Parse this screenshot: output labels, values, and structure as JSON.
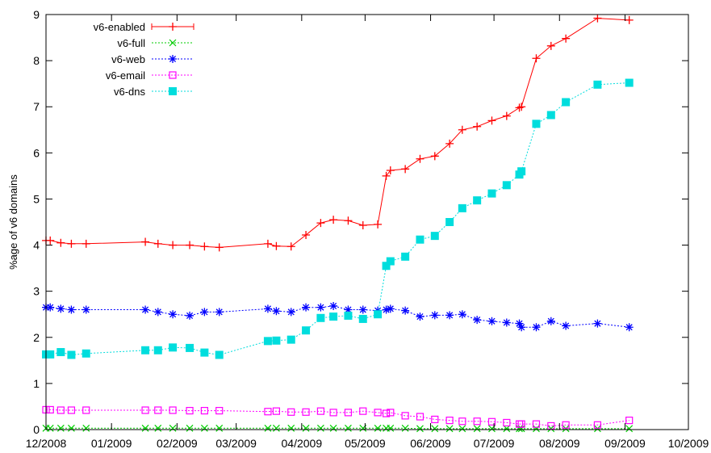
{
  "chart_data": {
    "type": "line",
    "title": "",
    "xlabel": "",
    "ylabel": "%age of v6 domains",
    "xlim": [
      "2008-12-01",
      "2009-10-01"
    ],
    "ylim": [
      0,
      9
    ],
    "xticks": [
      {
        "date": "2008-12-01",
        "label": "12/2008"
      },
      {
        "date": "2009-01-01",
        "label": "01/2009"
      },
      {
        "date": "2009-02-01",
        "label": "02/2009"
      },
      {
        "date": "2009-03-01",
        "label": "03/2009"
      },
      {
        "date": "2009-04-01",
        "label": "04/2009"
      },
      {
        "date": "2009-05-01",
        "label": "05/2009"
      },
      {
        "date": "2009-06-01",
        "label": "06/2009"
      },
      {
        "date": "2009-07-01",
        "label": "07/2009"
      },
      {
        "date": "2009-08-01",
        "label": "08/2009"
      },
      {
        "date": "2009-09-01",
        "label": "09/2009"
      },
      {
        "date": "2009-10-01",
        "label": "10/2009"
      }
    ],
    "yticks": [
      0,
      1,
      2,
      3,
      4,
      5,
      6,
      7,
      8,
      9
    ],
    "grid": false,
    "legend_position": "top-left",
    "series": [
      {
        "name": "v6-enabled",
        "color": "#ff0000",
        "marker": "plus",
        "points": [
          [
            "2008-12-01",
            4.1
          ],
          [
            "2008-12-03",
            4.1
          ],
          [
            "2008-12-08",
            4.05
          ],
          [
            "2008-12-13",
            4.03
          ],
          [
            "2008-12-20",
            4.03
          ],
          [
            "2009-01-17",
            4.07
          ],
          [
            "2009-01-23",
            4.03
          ],
          [
            "2009-01-30",
            4.0
          ],
          [
            "2009-02-07",
            4.0
          ],
          [
            "2009-02-14",
            3.97
          ],
          [
            "2009-02-21",
            3.95
          ],
          [
            "2009-03-16",
            4.03
          ],
          [
            "2009-03-20",
            3.98
          ],
          [
            "2009-03-27",
            3.97
          ],
          [
            "2009-04-03",
            4.22
          ],
          [
            "2009-04-10",
            4.48
          ],
          [
            "2009-04-16",
            4.55
          ],
          [
            "2009-04-23",
            4.53
          ],
          [
            "2009-04-30",
            4.43
          ],
          [
            "2009-05-07",
            4.45
          ],
          [
            "2009-05-11",
            5.5
          ],
          [
            "2009-05-13",
            5.62
          ],
          [
            "2009-05-20",
            5.65
          ],
          [
            "2009-05-27",
            5.87
          ],
          [
            "2009-06-03",
            5.93
          ],
          [
            "2009-06-10",
            6.2
          ],
          [
            "2009-06-16",
            6.5
          ],
          [
            "2009-06-23",
            6.57
          ],
          [
            "2009-06-30",
            6.7
          ],
          [
            "2009-07-07",
            6.8
          ],
          [
            "2009-07-13",
            6.98
          ],
          [
            "2009-07-14",
            7.0
          ],
          [
            "2009-07-21",
            8.05
          ],
          [
            "2009-07-28",
            8.32
          ],
          [
            "2009-08-04",
            8.48
          ],
          [
            "2009-08-19",
            8.92
          ],
          [
            "2009-09-03",
            8.88
          ]
        ]
      },
      {
        "name": "v6-full",
        "color": "#00cc00",
        "marker": "x",
        "points": [
          [
            "2008-12-01",
            0.03
          ],
          [
            "2008-12-03",
            0.03
          ],
          [
            "2008-12-08",
            0.03
          ],
          [
            "2008-12-13",
            0.03
          ],
          [
            "2008-12-20",
            0.03
          ],
          [
            "2009-01-17",
            0.03
          ],
          [
            "2009-01-23",
            0.03
          ],
          [
            "2009-01-30",
            0.03
          ],
          [
            "2009-02-07",
            0.03
          ],
          [
            "2009-02-14",
            0.03
          ],
          [
            "2009-02-21",
            0.03
          ],
          [
            "2009-03-16",
            0.03
          ],
          [
            "2009-03-20",
            0.03
          ],
          [
            "2009-03-27",
            0.03
          ],
          [
            "2009-04-03",
            0.03
          ],
          [
            "2009-04-10",
            0.03
          ],
          [
            "2009-04-16",
            0.03
          ],
          [
            "2009-04-23",
            0.03
          ],
          [
            "2009-04-30",
            0.03
          ],
          [
            "2009-05-07",
            0.03
          ],
          [
            "2009-05-11",
            0.03
          ],
          [
            "2009-05-13",
            0.03
          ],
          [
            "2009-05-20",
            0.03
          ],
          [
            "2009-05-27",
            0.02
          ],
          [
            "2009-06-03",
            0.02
          ],
          [
            "2009-06-10",
            0.02
          ],
          [
            "2009-06-16",
            0.02
          ],
          [
            "2009-06-23",
            0.02
          ],
          [
            "2009-06-30",
            0.02
          ],
          [
            "2009-07-07",
            0.02
          ],
          [
            "2009-07-13",
            0.02
          ],
          [
            "2009-07-14",
            0.02
          ],
          [
            "2009-07-21",
            0.02
          ],
          [
            "2009-07-28",
            0.02
          ],
          [
            "2009-08-04",
            0.02
          ],
          [
            "2009-08-19",
            0.02
          ],
          [
            "2009-09-03",
            0.02
          ]
        ]
      },
      {
        "name": "v6-web",
        "color": "#0000ff",
        "marker": "star",
        "points": [
          [
            "2008-12-01",
            2.65
          ],
          [
            "2008-12-03",
            2.65
          ],
          [
            "2008-12-08",
            2.62
          ],
          [
            "2008-12-13",
            2.6
          ],
          [
            "2008-12-20",
            2.6
          ],
          [
            "2009-01-17",
            2.6
          ],
          [
            "2009-01-23",
            2.55
          ],
          [
            "2009-01-30",
            2.5
          ],
          [
            "2009-02-07",
            2.47
          ],
          [
            "2009-02-14",
            2.55
          ],
          [
            "2009-02-21",
            2.55
          ],
          [
            "2009-03-16",
            2.62
          ],
          [
            "2009-03-20",
            2.57
          ],
          [
            "2009-03-27",
            2.55
          ],
          [
            "2009-04-03",
            2.65
          ],
          [
            "2009-04-10",
            2.65
          ],
          [
            "2009-04-16",
            2.68
          ],
          [
            "2009-04-23",
            2.6
          ],
          [
            "2009-04-30",
            2.6
          ],
          [
            "2009-05-07",
            2.58
          ],
          [
            "2009-05-11",
            2.6
          ],
          [
            "2009-05-13",
            2.62
          ],
          [
            "2009-05-20",
            2.58
          ],
          [
            "2009-05-27",
            2.45
          ],
          [
            "2009-06-03",
            2.48
          ],
          [
            "2009-06-10",
            2.48
          ],
          [
            "2009-06-16",
            2.5
          ],
          [
            "2009-06-23",
            2.38
          ],
          [
            "2009-06-30",
            2.35
          ],
          [
            "2009-07-07",
            2.32
          ],
          [
            "2009-07-13",
            2.3
          ],
          [
            "2009-07-14",
            2.22
          ],
          [
            "2009-07-21",
            2.22
          ],
          [
            "2009-07-28",
            2.35
          ],
          [
            "2009-08-04",
            2.25
          ],
          [
            "2009-08-19",
            2.3
          ],
          [
            "2009-09-03",
            2.22
          ]
        ]
      },
      {
        "name": "v6-email",
        "color": "#ff00ff",
        "marker": "square-open",
        "points": [
          [
            "2008-12-01",
            0.43
          ],
          [
            "2008-12-03",
            0.43
          ],
          [
            "2008-12-08",
            0.42
          ],
          [
            "2008-12-13",
            0.42
          ],
          [
            "2008-12-20",
            0.42
          ],
          [
            "2009-01-17",
            0.42
          ],
          [
            "2009-01-23",
            0.42
          ],
          [
            "2009-01-30",
            0.42
          ],
          [
            "2009-02-07",
            0.41
          ],
          [
            "2009-02-14",
            0.41
          ],
          [
            "2009-02-21",
            0.41
          ],
          [
            "2009-03-16",
            0.39
          ],
          [
            "2009-03-20",
            0.4
          ],
          [
            "2009-03-27",
            0.38
          ],
          [
            "2009-04-03",
            0.38
          ],
          [
            "2009-04-10",
            0.4
          ],
          [
            "2009-04-16",
            0.37
          ],
          [
            "2009-04-23",
            0.37
          ],
          [
            "2009-04-30",
            0.4
          ],
          [
            "2009-05-07",
            0.37
          ],
          [
            "2009-05-11",
            0.35
          ],
          [
            "2009-05-13",
            0.37
          ],
          [
            "2009-05-20",
            0.3
          ],
          [
            "2009-05-27",
            0.28
          ],
          [
            "2009-06-03",
            0.22
          ],
          [
            "2009-06-10",
            0.2
          ],
          [
            "2009-06-16",
            0.18
          ],
          [
            "2009-06-23",
            0.18
          ],
          [
            "2009-06-30",
            0.17
          ],
          [
            "2009-07-07",
            0.15
          ],
          [
            "2009-07-13",
            0.12
          ],
          [
            "2009-07-14",
            0.12
          ],
          [
            "2009-07-21",
            0.12
          ],
          [
            "2009-07-28",
            0.08
          ],
          [
            "2009-08-04",
            0.1
          ],
          [
            "2009-08-19",
            0.1
          ],
          [
            "2009-09-03",
            0.2
          ]
        ]
      },
      {
        "name": "v6-dns",
        "color": "#00dddd",
        "marker": "square-filled",
        "points": [
          [
            "2008-12-01",
            1.63
          ],
          [
            "2008-12-03",
            1.63
          ],
          [
            "2008-12-08",
            1.68
          ],
          [
            "2008-12-13",
            1.62
          ],
          [
            "2008-12-20",
            1.65
          ],
          [
            "2009-01-17",
            1.72
          ],
          [
            "2009-01-23",
            1.72
          ],
          [
            "2009-01-30",
            1.78
          ],
          [
            "2009-02-07",
            1.77
          ],
          [
            "2009-02-14",
            1.67
          ],
          [
            "2009-02-21",
            1.62
          ],
          [
            "2009-03-16",
            1.92
          ],
          [
            "2009-03-20",
            1.93
          ],
          [
            "2009-03-27",
            1.95
          ],
          [
            "2009-04-03",
            2.15
          ],
          [
            "2009-04-10",
            2.42
          ],
          [
            "2009-04-16",
            2.45
          ],
          [
            "2009-04-23",
            2.47
          ],
          [
            "2009-04-30",
            2.4
          ],
          [
            "2009-05-07",
            2.5
          ],
          [
            "2009-05-11",
            3.55
          ],
          [
            "2009-05-13",
            3.65
          ],
          [
            "2009-05-20",
            3.75
          ],
          [
            "2009-05-27",
            4.12
          ],
          [
            "2009-06-03",
            4.2
          ],
          [
            "2009-06-10",
            4.5
          ],
          [
            "2009-06-16",
            4.8
          ],
          [
            "2009-06-23",
            4.97
          ],
          [
            "2009-06-30",
            5.12
          ],
          [
            "2009-07-07",
            5.3
          ],
          [
            "2009-07-13",
            5.53
          ],
          [
            "2009-07-14",
            5.6
          ],
          [
            "2009-07-21",
            6.63
          ],
          [
            "2009-07-28",
            6.82
          ],
          [
            "2009-08-04",
            7.1
          ],
          [
            "2009-08-19",
            7.48
          ],
          [
            "2009-09-03",
            7.52
          ]
        ]
      }
    ]
  }
}
